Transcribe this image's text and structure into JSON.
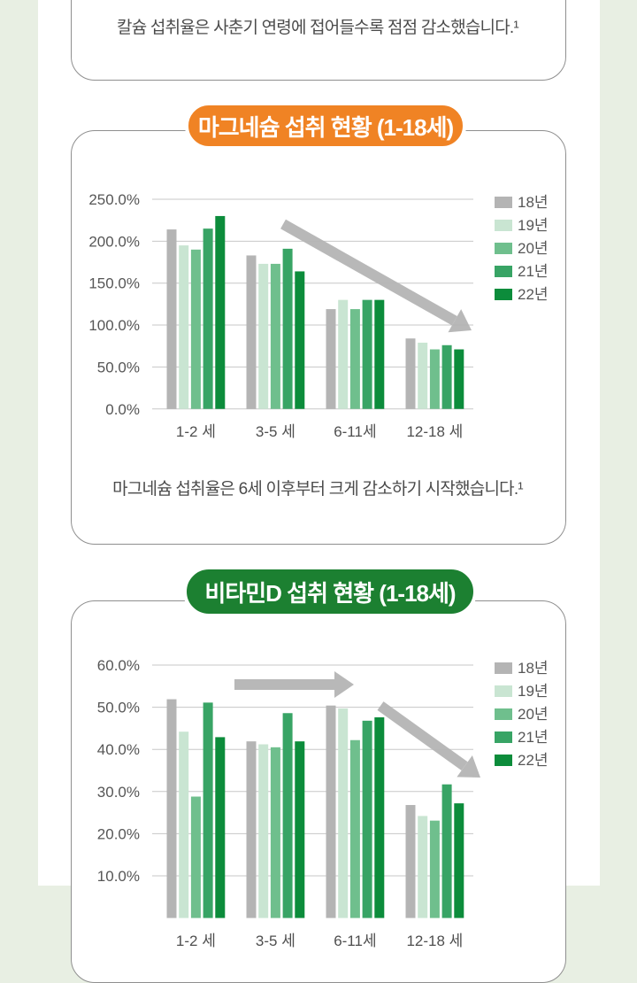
{
  "page": {
    "background_color": "#e8efe3",
    "panel_color": "#ffffff",
    "card_border_color": "#8f8f8f",
    "gridline_color": "#c7c7c7",
    "text_color": "#4b4b4b",
    "arrow_color": "#b5b5b5"
  },
  "cards": {
    "calcium": {
      "caption": "칼슘 섭취율은 사춘기 연령에 접어들수록 점점 감소했습니다.¹"
    },
    "magnesium": {
      "badge": "마그네슘 섭취 현황 (1-18세)",
      "badge_color": "#f08324",
      "caption": "마그네슘 섭취율은 6세 이후부터 크게 감소하기 시작했습니다.¹"
    },
    "vitamin_d": {
      "badge": "비타민D 섭취 현황 (1-18세)",
      "badge_color": "#1c8031"
    }
  },
  "chart_data": [
    {
      "id": "magnesium",
      "type": "bar",
      "title": "마그네슘 섭취 현황 (1-18세)",
      "categories": [
        "1-2 세",
        "3-5 세",
        "6-11세",
        "12-18 세"
      ],
      "series": [
        {
          "name": "18년",
          "color": "#b4b4b4",
          "values": [
            214,
            183,
            119,
            84
          ]
        },
        {
          "name": "19년",
          "color": "#c9e5d2",
          "values": [
            195,
            173,
            130,
            79
          ]
        },
        {
          "name": "20년",
          "color": "#6fbf8d",
          "values": [
            190,
            173,
            119,
            71
          ]
        },
        {
          "name": "21년",
          "color": "#38a465",
          "values": [
            215,
            191,
            130,
            76
          ]
        },
        {
          "name": "22년",
          "color": "#0c8c3b",
          "values": [
            230,
            164,
            130,
            71
          ]
        }
      ],
      "unit": "%",
      "ylim": [
        0,
        250
      ],
      "y_tick_labels": [
        "250.0%",
        "200.0%",
        "150.0%",
        "100.0%",
        "50.0%",
        "0.0%"
      ],
      "grid": true,
      "legend_position": "right",
      "annotations": [
        {
          "kind": "trend-arrow",
          "direction": "down-right"
        }
      ]
    },
    {
      "id": "vitamin-d",
      "type": "bar",
      "title": "비타민D 섭취 현황 (1-18세)",
      "categories": [
        "1-2 세",
        "3-5 세",
        "6-11세",
        "12-18 세"
      ],
      "series": [
        {
          "name": "18년",
          "color": "#b4b4b4",
          "values": [
            51.9,
            41.9,
            50.4,
            26.8
          ]
        },
        {
          "name": "19년",
          "color": "#c9e5d2",
          "values": [
            44.2,
            41.2,
            49.7,
            24.2
          ]
        },
        {
          "name": "20년",
          "color": "#6fbf8d",
          "values": [
            28.8,
            40.5,
            42.2,
            23.1
          ]
        },
        {
          "name": "21년",
          "color": "#38a465",
          "values": [
            51.1,
            48.6,
            46.8,
            31.7
          ]
        },
        {
          "name": "22년",
          "color": "#0c8c3b",
          "values": [
            42.9,
            41.9,
            47.6,
            27.2
          ]
        }
      ],
      "unit": "%",
      "ylim": [
        0,
        60
      ],
      "y_tick_labels": [
        "60.0%",
        "50.0%",
        "40.0%",
        "30.0%",
        "20.0%",
        "10.0%"
      ],
      "grid": true,
      "legend_position": "right",
      "annotations": [
        {
          "kind": "trend-arrow",
          "direction": "right"
        },
        {
          "kind": "trend-arrow",
          "direction": "down-right"
        }
      ]
    }
  ]
}
